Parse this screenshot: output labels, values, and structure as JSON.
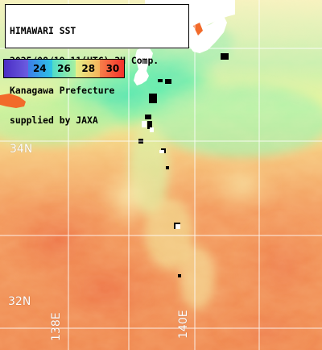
{
  "info": {
    "lines": [
      "HIMAWARI SST",
      "2025/08/19 11(UTC) 3H Comp.",
      "Kanagawa Prefecture",
      "supplied by JAXA"
    ]
  },
  "legend": {
    "labels": [
      "",
      "24",
      "26",
      "28",
      "30"
    ],
    "colors": [
      "#5b3fd6",
      "#22b4e6",
      "#7ee8b0",
      "#f5e070",
      "#f43a2c"
    ]
  },
  "grid": {
    "latitude_labels": [
      "34N",
      "32N"
    ],
    "longitude_labels": [
      "138E",
      "140E"
    ]
  },
  "map": {
    "land_color": "#000000",
    "cloud_color": "#ffffff",
    "gridline_color": "#ffffff"
  }
}
